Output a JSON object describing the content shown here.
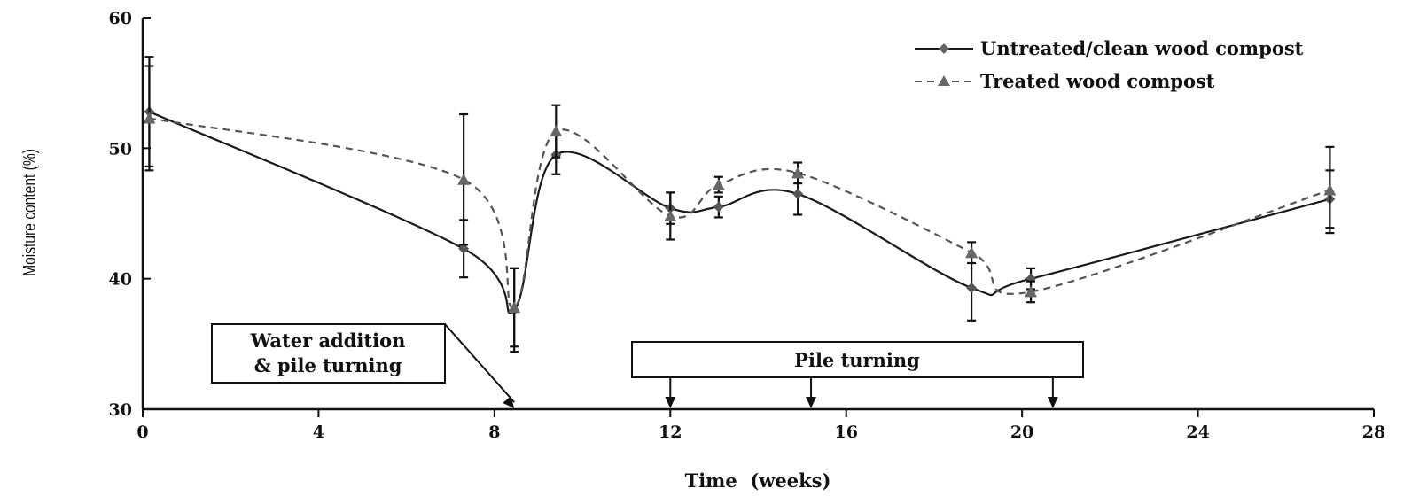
{
  "chart_data": {
    "type": "line",
    "xlabel": "Time  (weeks)",
    "ylabel": "Moisture content (%)",
    "xlim": [
      0,
      28
    ],
    "ylim": [
      30,
      60
    ],
    "xticks": [
      0,
      4,
      8,
      12,
      16,
      20,
      24,
      28
    ],
    "yticks": [
      30,
      40,
      50,
      60
    ],
    "grid": false,
    "legend_position": "top-right",
    "series": [
      {
        "name": "Untreated/clean wood compost",
        "style": "solid",
        "marker": "diamond",
        "color": "#1a1a1a",
        "x": [
          0.15,
          7.3,
          8.45,
          9.4,
          12.0,
          13.1,
          14.9,
          18.85,
          20.2,
          27.0
        ],
        "y": [
          52.8,
          42.3,
          37.6,
          49.5,
          45.4,
          45.5,
          46.5,
          39.3,
          40.0,
          46.1
        ],
        "err": [
          4.2,
          2.2,
          3.2,
          1.5,
          1.2,
          0.8,
          1.6,
          2.5,
          0.8,
          2.2
        ]
      },
      {
        "name": "Treated wood compost",
        "style": "dashed",
        "marker": "triangle",
        "color": "#555555",
        "x": [
          0.15,
          7.3,
          8.45,
          9.4,
          12.0,
          13.1,
          14.9,
          18.85,
          20.2,
          27.0
        ],
        "y": [
          52.3,
          47.6,
          37.8,
          51.3,
          44.8,
          47.2,
          48.1,
          42.0,
          39.0,
          46.8
        ],
        "err": [
          4.0,
          5.0,
          3.0,
          2.0,
          1.8,
          0.6,
          0.8,
          0.8,
          0.8,
          3.3
        ]
      }
    ],
    "annotations": [
      {
        "id": "water",
        "lines": [
          "Water addition",
          "& pile turning"
        ],
        "arrows_x": [
          8.45
        ]
      },
      {
        "id": "turning",
        "lines": [
          "Pile turning"
        ],
        "arrows_x": [
          12.0,
          15.2,
          20.7
        ]
      }
    ]
  }
}
